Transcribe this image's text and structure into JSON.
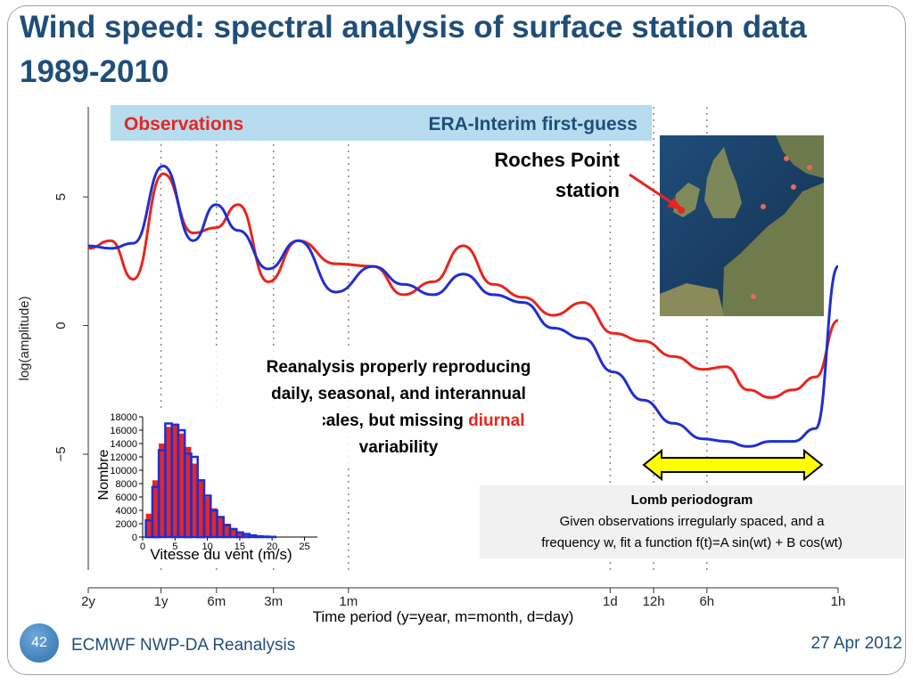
{
  "slide": {
    "title": "Wind speed: spectral analysis of surface station data 1989-2010",
    "page_number": "42",
    "footer_left": "ECMWF NWP-DA Reanalysis",
    "footer_right": "27 Apr 2012"
  },
  "legend": {
    "observations": "Observations",
    "era": "ERA-Interim first-guess",
    "observations_color": "#e8251f",
    "era_color": "#1f4e79",
    "background_color": "#b7dcf0"
  },
  "station_label": [
    "Roches Point",
    "station"
  ],
  "annotation": {
    "lines": [
      "Reanalysis properly reproducing",
      "daily, seasonal, and interannual",
      "timescales, but missing"
    ],
    "highlight": "diurnal",
    "last_line": "variability"
  },
  "lomb": {
    "title": "Lomb periodogram",
    "lines": [
      "Given observations irregularly spaced, and a",
      "frequency w, fit a function f(t)=A sin(wt) + B cos(wt)"
    ]
  },
  "map": {
    "label": "map-of-europe-stations"
  },
  "chart_data": [
    {
      "type": "line",
      "title": "",
      "ylabel": "log(amplitude)",
      "xlabel": "Time period (y=year, m=month, d=day)",
      "yticks": [
        5,
        0,
        -5
      ],
      "ylim": [
        -9.5,
        8.5
      ],
      "x_period_labels": [
        "2y",
        "1y",
        "6m",
        "3m",
        "1m",
        "1d",
        "12h",
        "6h",
        "1h"
      ],
      "x_label_positions": [
        0,
        0.097,
        0.171,
        0.247,
        0.347,
        0.696,
        0.754,
        0.825,
        1.0
      ],
      "dotted_gridlines_at": [
        0.097,
        0.171,
        0.247,
        0.347,
        0.696,
        0.754,
        0.825
      ],
      "series": [
        {
          "name": "Observations",
          "color": "#e8251f",
          "x": [
            0,
            0.03,
            0.06,
            0.1,
            0.14,
            0.17,
            0.2,
            0.24,
            0.28,
            0.33,
            0.38,
            0.42,
            0.46,
            0.5,
            0.54,
            0.58,
            0.62,
            0.66,
            0.7,
            0.74,
            0.78,
            0.82,
            0.85,
            0.88,
            0.91,
            0.94,
            0.97,
            1.0
          ],
          "values": [
            3.0,
            3.3,
            1.8,
            5.9,
            3.6,
            3.8,
            4.7,
            1.7,
            3.3,
            2.4,
            2.3,
            1.2,
            1.7,
            3.1,
            1.6,
            1.1,
            0.4,
            0.9,
            -0.3,
            -0.6,
            -1.2,
            -1.7,
            -1.6,
            -2.5,
            -2.8,
            -2.5,
            -2.0,
            0.2
          ]
        },
        {
          "name": "ERA-Interim first-guess",
          "color": "#1f2fd0",
          "x": [
            0,
            0.03,
            0.06,
            0.1,
            0.14,
            0.17,
            0.2,
            0.24,
            0.28,
            0.33,
            0.38,
            0.42,
            0.46,
            0.5,
            0.54,
            0.58,
            0.62,
            0.66,
            0.7,
            0.74,
            0.78,
            0.82,
            0.85,
            0.88,
            0.91,
            0.94,
            0.97,
            1.0
          ],
          "values": [
            3.1,
            3.0,
            3.2,
            6.2,
            3.3,
            4.7,
            3.7,
            2.2,
            3.3,
            1.3,
            2.3,
            1.6,
            1.2,
            2.0,
            1.2,
            0.9,
            -0.1,
            -0.5,
            -1.8,
            -2.9,
            -3.8,
            -4.4,
            -4.5,
            -4.7,
            -4.5,
            -4.5,
            -4.0,
            2.3
          ]
        }
      ]
    },
    {
      "type": "bar",
      "title": "",
      "xlabel": "Vitesse du vent (m/s)",
      "ylabel": "Nombre",
      "ylim": [
        0,
        18000
      ],
      "yticks": [
        0,
        2000,
        4000,
        6000,
        8000,
        10000,
        12000,
        14000,
        16000,
        18000
      ],
      "xticks": [
        0,
        5,
        10,
        15,
        20,
        25
      ],
      "categories": [
        1,
        2,
        3,
        4,
        5,
        6,
        7,
        8,
        9,
        10,
        11,
        12,
        13,
        14,
        15,
        16,
        17,
        18,
        19,
        20
      ],
      "series": [
        {
          "name": "",
          "color": "#e8251f",
          "values": [
            3500,
            8500,
            14000,
            16500,
            17000,
            15500,
            13500,
            11000,
            8500,
            6000,
            4300,
            3000,
            2000,
            1300,
            800,
            500,
            300,
            150,
            80,
            40
          ]
        },
        {
          "name": "",
          "color": "#1f2fd0",
          "values": [
            2500,
            7500,
            13000,
            17000,
            16800,
            16000,
            12500,
            12000,
            8500,
            6200,
            4000,
            3000,
            1800,
            1200,
            700,
            450,
            250,
            120,
            60,
            30
          ]
        }
      ]
    }
  ]
}
